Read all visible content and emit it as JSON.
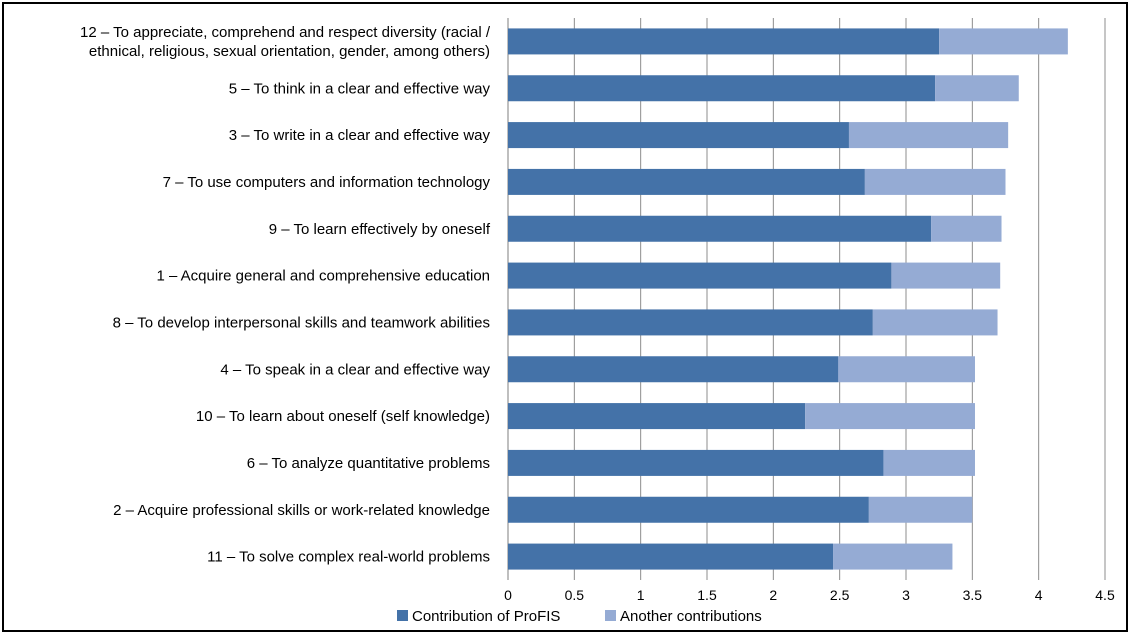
{
  "chart_data": {
    "type": "bar",
    "orientation": "horizontal",
    "stacked": true,
    "title": "",
    "xlabel": "",
    "ylabel": "",
    "xlim": [
      0,
      4.5
    ],
    "xticks": [
      "0",
      "0.5",
      "1",
      "1.5",
      "2",
      "2.5",
      "3",
      "3.5",
      "4",
      "4.5"
    ],
    "grid": true,
    "legend_position": "bottom",
    "categories": [
      [
        "12 – To appreciate, comprehend and respect diversity (racial /",
        "ethnical, religious, sexual orientation, gender, among others)"
      ],
      [
        "5 – To think in a clear and effective way"
      ],
      [
        "3 – To write in a clear and effective way"
      ],
      [
        "7 – To use computers and information technology"
      ],
      [
        "9 – To learn effectively by oneself"
      ],
      [
        "1 – Acquire general and comprehensive education"
      ],
      [
        "8 – To develop interpersonal skills and teamwork abilities"
      ],
      [
        "4 – To speak in a clear and effective way"
      ],
      [
        "10 – To learn about oneself (self knowledge)"
      ],
      [
        "6 – To analyze quantitative problems"
      ],
      [
        "2 – Acquire professional skills or work-related knowledge"
      ],
      [
        "11 – To solve complex real-world problems"
      ]
    ],
    "series": [
      {
        "name": "Contribution of ProFIS",
        "color": "#4472a8",
        "values": [
          3.25,
          3.22,
          2.57,
          2.69,
          3.19,
          2.89,
          2.75,
          2.49,
          2.24,
          2.83,
          2.72,
          2.45
        ]
      },
      {
        "name": "Another contributions",
        "color": "#95abd4",
        "values": [
          0.97,
          0.63,
          1.2,
          1.06,
          0.53,
          0.82,
          0.94,
          1.03,
          1.28,
          0.69,
          0.78,
          0.9
        ]
      }
    ]
  }
}
